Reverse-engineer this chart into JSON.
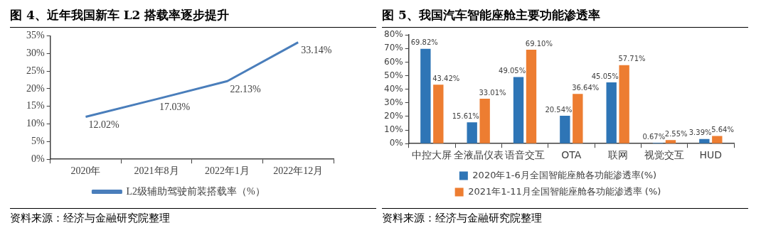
{
  "chart_data": [
    {
      "type": "line",
      "title": "图 4、近年我国新车 L2 搭载率逐步提升",
      "categories": [
        "2020年",
        "2021年8月",
        "2022年1月",
        "2022年12月"
      ],
      "series": [
        {
          "name": "L2级辅助驾驶前装搭载率（%）",
          "color": "#4a7ebb",
          "values": [
            12.02,
            17.03,
            22.13,
            33.14
          ],
          "value_labels": [
            "12.02%",
            "17.03%",
            "22.13%",
            "33.14%"
          ]
        }
      ],
      "ylim": [
        0,
        35
      ],
      "yticks": [
        {
          "value": 0,
          "label": "0%"
        },
        {
          "value": 5,
          "label": "5%"
        },
        {
          "value": 10,
          "label": "10%"
        },
        {
          "value": 15,
          "label": "15%"
        },
        {
          "value": 20,
          "label": "20%"
        },
        {
          "value": 25,
          "label": "25%"
        },
        {
          "value": 30,
          "label": "30%"
        },
        {
          "value": 35,
          "label": "35%"
        }
      ],
      "grid": false,
      "legend": "bottom",
      "marker": "none",
      "line_style": "solid",
      "annotations": [
        "资料来源：经济与金融研究院整理"
      ]
    },
    {
      "type": "bar",
      "title": "图 5、我国汽车智能座舱主要功能渗透率",
      "categories": [
        "中控大屏",
        "全液晶仪表",
        "语音交互",
        "OTA",
        "联网",
        "视觉交互",
        "HUD"
      ],
      "series": [
        {
          "name": "2020年1-6月全国智能座舱各功能渗透率(%)",
          "color": "#2e75b6",
          "values": [
            69.82,
            15.61,
            49.05,
            20.54,
            45.05,
            0.67,
            3.39
          ],
          "value_labels": [
            "69.82%",
            "15.61%",
            "49.05%",
            "20.54%",
            "45.05%",
            "0.67%",
            "3.39%"
          ]
        },
        {
          "name": "2021年1-11月全国智能座舱各功能渗透率 (%)",
          "color": "#ed7d31",
          "values": [
            43.42,
            33.01,
            69.1,
            36.64,
            57.71,
            2.55,
            5.64
          ],
          "value_labels": [
            "43.42%",
            "33.01%",
            "69.10%",
            "36.64%",
            "57.71%",
            "2.55%",
            "5.64%"
          ]
        }
      ],
      "ylim": [
        0,
        80
      ],
      "yticks": [
        {
          "value": 0,
          "label": "0%"
        },
        {
          "value": 10,
          "label": "10%"
        },
        {
          "value": 20,
          "label": "20%"
        },
        {
          "value": 30,
          "label": "30%"
        },
        {
          "value": 40,
          "label": "40%"
        },
        {
          "value": 50,
          "label": "50%"
        },
        {
          "value": 60,
          "label": "60%"
        },
        {
          "value": 70,
          "label": "70%"
        },
        {
          "value": 80,
          "label": "80%"
        }
      ],
      "grid": false,
      "legend": "bottom",
      "annotations": [
        "资料来源：经济与金融研究院整理"
      ]
    }
  ]
}
